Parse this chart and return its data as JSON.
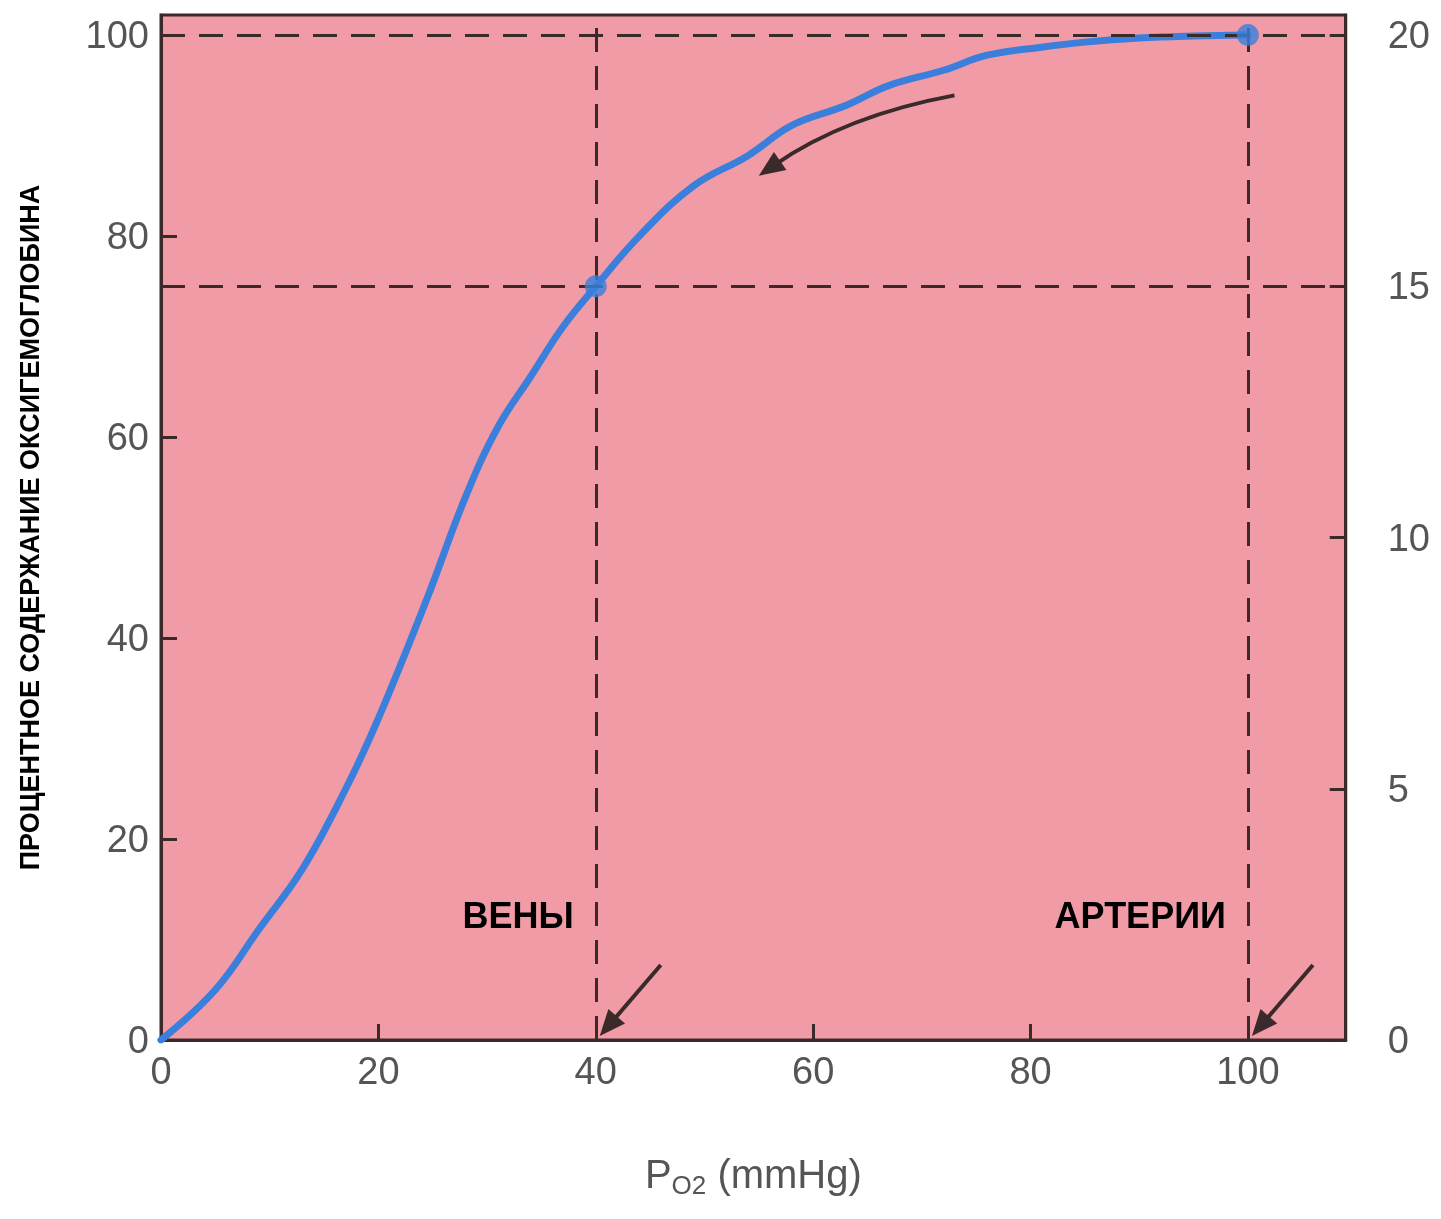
{
  "chart_data": {
    "type": "line",
    "xlabel": "P$_{O2}$ (mmHg)",
    "ylabel": "ПРОЦЕНТНОЕ СОДЕРЖАНИЕ ОКСИГЕМОГЛОБИНА",
    "xlim": [
      0,
      109
    ],
    "xticks": [
      0,
      20,
      40,
      60,
      80,
      100
    ],
    "ylim": [
      0,
      102
    ],
    "yticks": [
      0,
      20,
      40,
      60,
      80,
      100
    ],
    "y2lim": [
      0,
      20.4
    ],
    "y2ticks": [
      0,
      5,
      10,
      15,
      20
    ],
    "grid": false,
    "marker": "none",
    "line_style": "solid",
    "series": [
      {
        "color": "#3a7fdc",
        "x": [
          0,
          5,
          9,
          13,
          17,
          20,
          24.5,
          28,
          31,
          34,
          37,
          40,
          44,
          49,
          54,
          58,
          63,
          67,
          72,
          76,
          81,
          85,
          90,
          95,
          100
        ],
        "values": [
          0,
          5,
          11,
          17,
          25,
          32,
          44,
          54,
          61,
          66,
          71,
          75,
          80,
          85,
          88,
          91,
          93,
          95,
          96.5,
          98,
          98.8,
          99.3,
          99.7,
          99.9,
          100
        ]
      },
      {
        "type": "scatter",
        "color": "#3a7fdc",
        "marker": "circle",
        "x": [
          40,
          100
        ],
        "values": [
          75,
          100
        ]
      }
    ],
    "ref_lines": [
      {
        "axis": "y",
        "value": 100,
        "label": null,
        "color": "#3a2a2a",
        "line_style": "dashed"
      },
      {
        "axis": "y",
        "value": 75,
        "label": null,
        "color": "#3a2a2a",
        "line_style": "dashed"
      },
      {
        "axis": "x",
        "value": 40,
        "label": "ВЕНЫ",
        "color": "#3a2a2a",
        "line_style": "dashed"
      },
      {
        "axis": "x",
        "value": 100,
        "label": "АРТЕРИИ",
        "color": "#3a2a2a",
        "line_style": "dashed"
      }
    ]
  }
}
